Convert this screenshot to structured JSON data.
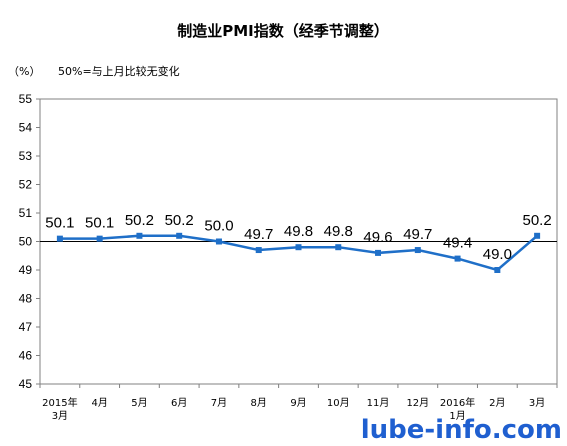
{
  "chart_data": {
    "type": "line",
    "title": "制造业PMI指数（经季节调整）",
    "ylabel": "（%）",
    "note": "50%=与上月比较无变化",
    "ylim": [
      45,
      55
    ],
    "yticks": [
      "45",
      "46",
      "47",
      "48",
      "49",
      "50",
      "51",
      "52",
      "53",
      "54",
      "55"
    ],
    "reference_line": 50,
    "categories": [
      [
        "2015年",
        "3月"
      ],
      [
        "4月"
      ],
      [
        "5月"
      ],
      [
        "6月"
      ],
      [
        "7月"
      ],
      [
        "8月"
      ],
      [
        "9月"
      ],
      [
        "10月"
      ],
      [
        "11月"
      ],
      [
        "12月"
      ],
      [
        "2016年",
        "1月"
      ],
      [
        "2月"
      ],
      [
        "3月"
      ]
    ],
    "series": [
      {
        "values": [
          50.1,
          50.1,
          50.2,
          50.2,
          50.0,
          49.7,
          49.8,
          49.8,
          49.6,
          49.7,
          49.4,
          49.0,
          50.2
        ],
        "labels": [
          "50.1",
          "50.1",
          "50.2",
          "50.2",
          "50.0",
          "49.7",
          "49.8",
          "49.8",
          "49.6",
          "49.7",
          "49.4",
          "49.0",
          "50.2"
        ],
        "color": "#1f6fc8"
      }
    ],
    "grid": false
  },
  "watermark": "lube-info.com"
}
